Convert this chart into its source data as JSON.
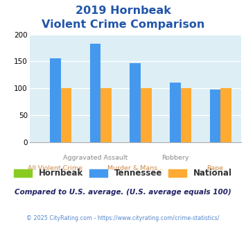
{
  "title_line1": "2019 Hornbeak",
  "title_line2": "Violent Crime Comparison",
  "title_color": "#2255aa",
  "categories": [
    "All Violent Crime",
    "Aggravated Assault",
    "Murder & Mans...",
    "Robbery",
    "Rape"
  ],
  "xtick_top": [
    "",
    "Aggravated Assault",
    "",
    "Robbery",
    ""
  ],
  "xtick_bot": [
    "All Violent Crime",
    "",
    "Murder & Mans...",
    "",
    "Rape"
  ],
  "hornbeak_values": [
    0,
    0,
    0,
    0,
    0
  ],
  "tennessee_values": [
    155,
    182,
    147,
    110,
    97
  ],
  "national_values": [
    100,
    100,
    100,
    100,
    100
  ],
  "hornbeak_color": "#88cc22",
  "tennessee_color": "#4499ee",
  "national_color": "#ffaa33",
  "ylim": [
    0,
    200
  ],
  "yticks": [
    0,
    50,
    100,
    150,
    200
  ],
  "plot_bg": "#ddeef5",
  "footer_text": "© 2025 CityRating.com - https://www.cityrating.com/crime-statistics/",
  "comparison_text": "Compared to U.S. average. (U.S. average equals 100)",
  "legend_labels": [
    "Hornbeak",
    "Tennessee",
    "National"
  ],
  "xtick_top_color": "#888888",
  "xtick_bot_color": "#cc8844"
}
